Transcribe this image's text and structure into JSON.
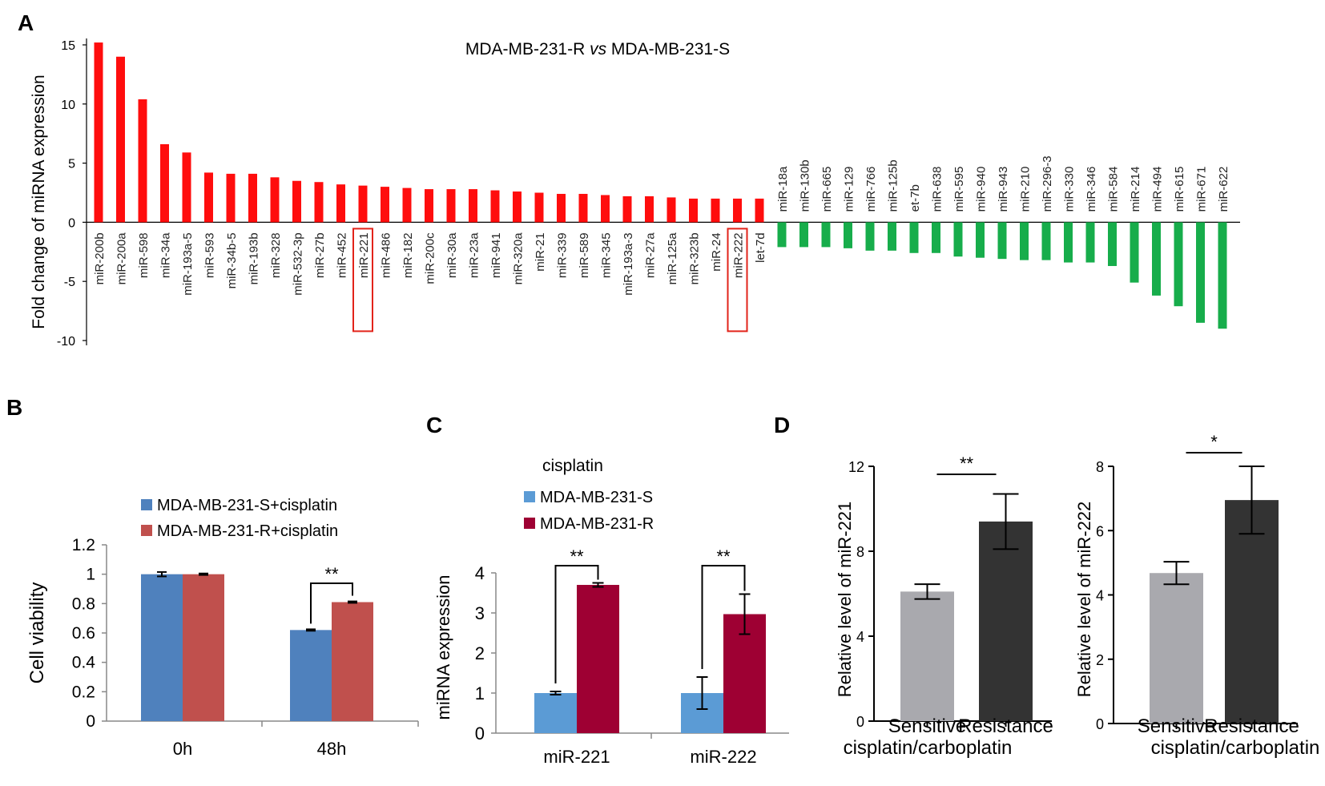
{
  "panel_labels": [
    "A",
    "B",
    "C",
    "D"
  ],
  "colors": {
    "up": "#ff0d0d",
    "down": "#17ad4b",
    "blue": "#4f81bd",
    "salmon": "#c0504d",
    "c_blue": "#5b9bd5",
    "c_maroon": "#9e0033",
    "grey": "#a9a9ae",
    "dark": "#333333",
    "highlight": "#e2231a"
  },
  "chart_data": [
    {
      "id": "A",
      "type": "bar",
      "title_prefix": "MDA-MB-231-R ",
      "title_vs": "vs",
      "title_suffix": " MDA-MB-231-S",
      "ylabel": "Fold change of miRNA expression",
      "ylim": [
        -10,
        15
      ],
      "yticks": [
        15,
        10,
        5,
        0,
        -5,
        -10
      ],
      "highlighted": [
        "miR-221",
        "miR-222"
      ],
      "up_categories": [
        "miR-200b",
        "miR-200a",
        "miR-598",
        "miR-34a",
        "miR-193a-5",
        "miR-593",
        "miR-34b-5",
        "miR-193b",
        "miR-328",
        "miR-532-3p",
        "miR-27b",
        "miR-452",
        "miR-221",
        "miR-486",
        "miR-182",
        "miR-200c",
        "miR-30a",
        "miR-23a",
        "miR-941",
        "miR-320a",
        "miR-21",
        "miR-339",
        "miR-589",
        "miR-345",
        "miR-193a-3",
        "miR-27a",
        "miR-125a",
        "miR-323b",
        "miR-24",
        "miR-222",
        "let-7d"
      ],
      "up_values": [
        15.2,
        14.0,
        10.4,
        6.6,
        5.9,
        4.2,
        4.1,
        4.1,
        3.8,
        3.5,
        3.4,
        3.2,
        3.1,
        3.0,
        2.9,
        2.8,
        2.8,
        2.8,
        2.7,
        2.6,
        2.5,
        2.4,
        2.4,
        2.3,
        2.2,
        2.2,
        2.1,
        2.0,
        2.0,
        2.0,
        2.0
      ],
      "down_categories": [
        "miR-18a",
        "miR-130b",
        "miR-665",
        "miR-129",
        "miR-766",
        "miR-125b",
        "et-7b",
        "miR-638",
        "miR-595",
        "miR-940",
        "miR-943",
        "miR-210",
        "miR-296-3",
        "miR-330",
        "miR-346",
        "miR-584",
        "miR-214",
        "miR-494",
        "miR-615",
        "miR-671",
        "miR-622"
      ],
      "down_values": [
        -2.1,
        -2.1,
        -2.1,
        -2.2,
        -2.4,
        -2.4,
        -2.6,
        -2.6,
        -2.9,
        -3.0,
        -3.1,
        -3.2,
        -3.2,
        -3.4,
        -3.4,
        -3.7,
        -5.1,
        -6.2,
        -7.1,
        -8.5,
        -9.0
      ]
    },
    {
      "id": "B",
      "type": "bar",
      "ylabel": "Cell viability",
      "categories": [
        "0h",
        "48h"
      ],
      "ylim": [
        0,
        1.2
      ],
      "yticks": [
        "1.2",
        "1",
        "0.8",
        "0.6",
        "0.4",
        "0.2",
        "0"
      ],
      "series": [
        {
          "name": "MDA-MB-231-S+cisplatin",
          "values": [
            1.0,
            0.62
          ],
          "errors": [
            0.015,
            0.005
          ]
        },
        {
          "name": "MDA-MB-231-R+cisplatin",
          "values": [
            1.0,
            0.81
          ],
          "errors": [
            0.005,
            0.005
          ]
        }
      ],
      "significance": "**"
    },
    {
      "id": "C",
      "type": "bar",
      "title": "cisplatin",
      "ylabel": "miRNA expression",
      "categories": [
        "miR-221",
        "miR-222"
      ],
      "ylim": [
        0,
        4
      ],
      "yticks": [
        "4",
        "3",
        "2",
        "1",
        "0"
      ],
      "series": [
        {
          "name": "MDA-MB-231-S",
          "values": [
            1.0,
            1.0
          ],
          "errors": [
            0.04,
            0.4
          ]
        },
        {
          "name": "MDA-MB-231-R",
          "values": [
            3.7,
            2.97
          ],
          "errors": [
            0.05,
            0.5
          ]
        }
      ],
      "significance": [
        "**",
        "**"
      ]
    },
    {
      "id": "D1",
      "type": "bar",
      "ylabel": "Relative level of miR-221",
      "categories": [
        "Sensitive",
        "Resistance"
      ],
      "xlabel": "cisplatin/carboplatin",
      "ylim": [
        0,
        12
      ],
      "yticks": [
        "12",
        "8",
        "4",
        "0"
      ],
      "values": [
        6.1,
        9.4
      ],
      "errors": [
        0.35,
        1.3
      ],
      "significance": "**"
    },
    {
      "id": "D2",
      "type": "bar",
      "ylabel": "Relative level of miR-222",
      "categories": [
        "Sensitive",
        "Resistance"
      ],
      "xlabel": "cisplatin/carboplatin",
      "ylim": [
        0,
        8
      ],
      "yticks": [
        "8",
        "6",
        "4",
        "2",
        "0"
      ],
      "values": [
        4.68,
        6.95
      ],
      "errors": [
        0.35,
        1.05
      ],
      "significance": "*"
    }
  ]
}
